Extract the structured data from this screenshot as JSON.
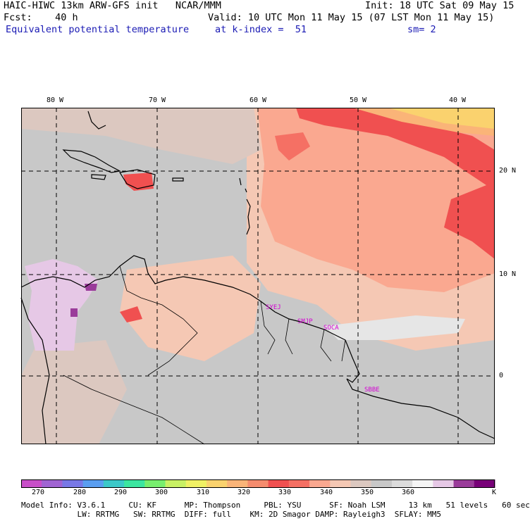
{
  "header": {
    "line1_left": "HAIC-HIWC 13km ARW-GFS init   NCAR/MMM",
    "line1_right": "Init: 18 UTC Sat 09 May 15",
    "line2_left": "Fcst:    40 h",
    "line2_right": "Valid: 10 UTC Mon 11 May 15 (07 LST Mon 11 May 15)",
    "line3_field": "Equivalent potential temperature",
    "line3_level": "at k-index =  51",
    "line3_smooth": "sm= 2"
  },
  "map": {
    "lon_labels": [
      "80 W",
      "70 W",
      "60 W",
      "50 W",
      "40 W"
    ],
    "lat_labels": [
      "20 N",
      "10 N",
      "0"
    ],
    "stations": [
      "SYEJ",
      "SMJP",
      "SOCA",
      "SBBE"
    ]
  },
  "colorbar": {
    "ticks": [
      "270",
      "280",
      "290",
      "300",
      "310",
      "320",
      "330",
      "340",
      "350",
      "360"
    ],
    "unit": "K",
    "colors": [
      "#c84fc8",
      "#a064d2",
      "#7878e6",
      "#5a9ef0",
      "#3cc8c8",
      "#3ce6a0",
      "#78ee6e",
      "#c8f064",
      "#f0f064",
      "#fad26e",
      "#fab478",
      "#f58c6e",
      "#f05050",
      "#f57064",
      "#faa890",
      "#f5c8b4",
      "#dcc8c0",
      "#c8c8c8",
      "#dcdcdc",
      "#f5f5f5",
      "#e6c8e6",
      "#9a3c9a",
      "#780078"
    ]
  },
  "footer": {
    "line1": "Model Info: V3.6.1     CU: KF      MP: Thompson     PBL: YSU      SF: Noah LSM     13 km   51 levels   60 sec",
    "line2": "            LW: RRTMG   SW: RRTMG  DIFF: full    KM: 2D Smagor DAMP: Rayleigh3  SFLAY: MM5"
  }
}
